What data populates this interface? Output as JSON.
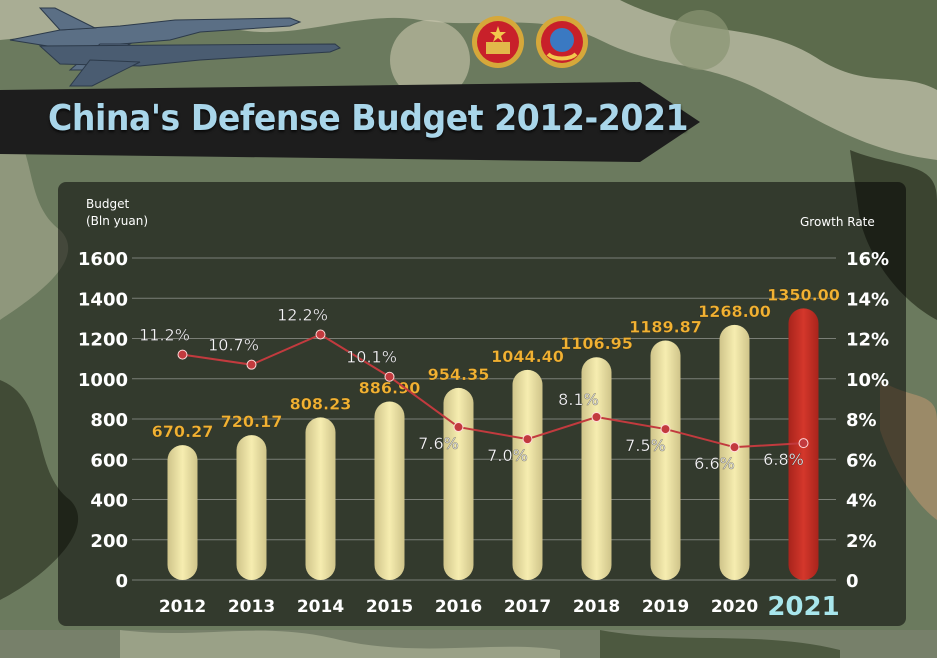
{
  "title": "China's Defense Budget 2012-2021",
  "icons": {
    "emblem_left": "national-emblem-icon",
    "emblem_right": "cppcc-emblem-icon",
    "jets": "fighter-jets-image"
  },
  "colors": {
    "bar": "#f6edb0",
    "bar_highlight": "#d4372b",
    "value_label": "#f2b233",
    "line": "#c23a3e",
    "title": "#a9d6ea",
    "year_highlight": "#a8e6ec"
  },
  "chart_data": {
    "type": "bar",
    "title": "China's Defense Budget 2012-2021",
    "categories": [
      "2012",
      "2013",
      "2014",
      "2015",
      "2016",
      "2017",
      "2018",
      "2019",
      "2020",
      "2021"
    ],
    "ylabel_line1": "Budget",
    "ylabel_line2": "(Bln yuan)",
    "y2label": "Growth Rate",
    "ylim": [
      0,
      1600
    ],
    "y_ticks": [
      "0",
      "200",
      "400",
      "600",
      "800",
      "1000",
      "1200",
      "1400",
      "1600"
    ],
    "y2lim": [
      0,
      16
    ],
    "y2_ticks": [
      "0",
      "2%",
      "4%",
      "6%",
      "8%",
      "10%",
      "12%",
      "14%",
      "16%"
    ],
    "grid": true,
    "highlight_category": "2021",
    "series": [
      {
        "type": "bar",
        "values": [
          670.27,
          720.17,
          808.23,
          886.9,
          954.35,
          1044.4,
          1106.95,
          1189.87,
          1268.0,
          1350.0
        ],
        "labels": [
          "670.27",
          "720.17",
          "808.23",
          "886.90",
          "954.35",
          "1044.40",
          "1106.95",
          "1189.87",
          "1268.00",
          "1350.00"
        ]
      },
      {
        "type": "line",
        "axis": "right",
        "values": [
          11.2,
          10.7,
          12.2,
          10.1,
          7.6,
          7.0,
          8.1,
          7.5,
          6.6,
          6.8
        ],
        "labels": [
          "11.2%",
          "10.7%",
          "12.2%",
          "10.1%",
          "7.6%",
          "7.0%",
          "8.1%",
          "7.5%",
          "6.6%",
          "6.8%"
        ]
      }
    ]
  }
}
